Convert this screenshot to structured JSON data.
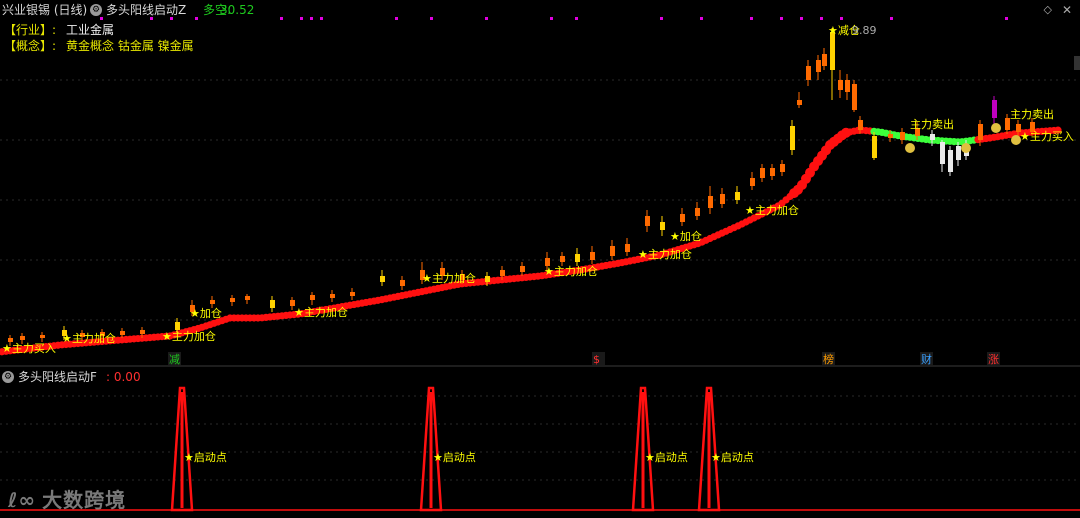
{
  "header": {
    "symbol": "兴业银锡 (日线)",
    "indicator": "多头阳线启动Z",
    "label": "多空:",
    "value": "30.52"
  },
  "info": {
    "industry_key": "【行业】:",
    "industry_value": "工业金属",
    "concept_key": "【概念】:",
    "concept_value": "黄金概念 钴金属 镍金属"
  },
  "sub_header": {
    "indicator": "多头阳线启动F",
    "value": ": 0.00"
  },
  "watermark": {
    "mark": "ℓ∞",
    "text": "大数跨境"
  },
  "annotations": {
    "buy": "主力买入",
    "add": "主力加仓",
    "add_short": "加仓",
    "sell": "主力卖出",
    "reduce": "减仓",
    "peak_value": "9.89",
    "start": "启动点"
  },
  "markers": [
    {
      "text": "减",
      "color": "#1ec81e"
    },
    {
      "text": "$",
      "color": "#ff3030"
    },
    {
      "text": "榜",
      "color": "#ff9c00"
    },
    {
      "text": "财",
      "color": "#3aa0ff"
    },
    {
      "text": "涨",
      "color": "#ff3030"
    }
  ],
  "colors": {
    "up_candle": "#ff6a00",
    "up_candle_bright": "#ffd200",
    "trend": "#ff1010",
    "trend_green": "#3cff3c",
    "annotation": "#ffff00",
    "start_peak": "#ff1010",
    "dots": "#e000e0"
  }
}
